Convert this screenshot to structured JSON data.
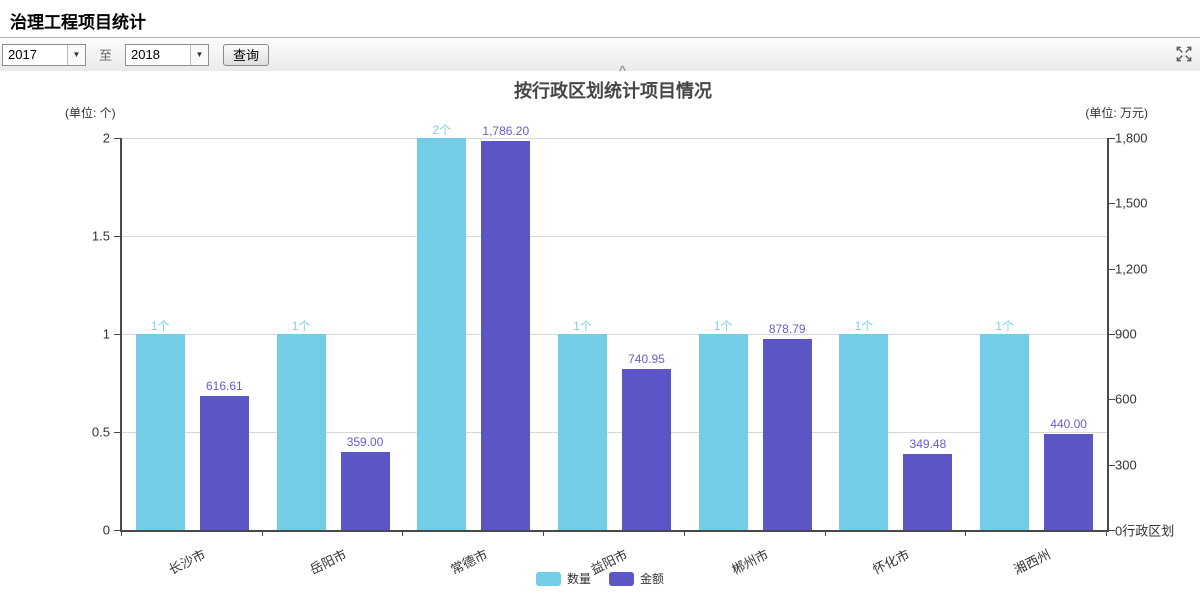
{
  "page": {
    "title": "治理工程项目统计"
  },
  "toolbar": {
    "year_from": "2017",
    "to_label": "至",
    "year_to": "2018",
    "query_label": "查询",
    "collapse_caret": "^",
    "dropdown_arrow": "▼"
  },
  "chart_data": {
    "type": "bar",
    "title": "按行政区划统计项目情况",
    "unit_left": "(单位: 个)",
    "unit_right": "(单位: 万元)",
    "x_axis_name": "行政区划",
    "categories": [
      "长沙市",
      "岳阳市",
      "常德市",
      "益阳市",
      "郴州市",
      "怀化市",
      "湘西州"
    ],
    "series": [
      {
        "name": "数量",
        "axis": "left",
        "max": 2,
        "color": "#73cde7",
        "label_color": "#7ed1e9",
        "values": [
          1,
          1,
          2,
          1,
          1,
          1,
          1
        ],
        "labels": [
          "1个",
          "1个",
          "2个",
          "1个",
          "1个",
          "1个",
          "1个"
        ]
      },
      {
        "name": "金额",
        "axis": "right",
        "max": 1800,
        "color": "#5b55c6",
        "label_color": "#6a5bd0",
        "values": [
          616.61,
          359.0,
          1786.2,
          740.95,
          878.79,
          349.48,
          440.0
        ],
        "labels": [
          "616.61",
          "359.00",
          "1,786.20",
          "740.95",
          "878.79",
          "349.48",
          "440.00"
        ]
      }
    ],
    "left_axis_ticks": [
      "2",
      "1.5",
      "1",
      "0.5",
      "0"
    ],
    "right_axis_ticks": [
      "1,800",
      "1,500",
      "1,200",
      "900",
      "600",
      "300",
      "0"
    ],
    "ylim_left": [
      0,
      2
    ],
    "ylim_right": [
      0,
      1800
    ],
    "grid": true,
    "legend": [
      "数量",
      "金额"
    ],
    "legend_position": "bottom"
  }
}
